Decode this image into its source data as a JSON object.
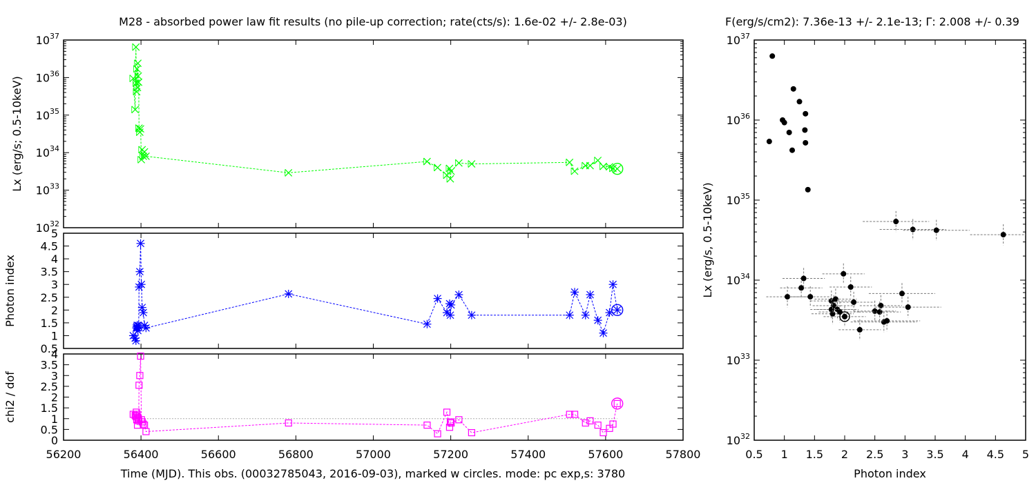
{
  "chart_data": [
    {
      "id": "lx",
      "type": "scatter",
      "title": "M28  - absorbed power law fit results (no pile-up correction; rate(cts/s): 1.6e-02 +/- 2.8e-03)",
      "xlabel": "Time (MJD). This obs. (00032785043, 2016-09-03), marked w circles. mode: pc exp,s: 3780",
      "ylabel": "Lx (erg/s; 0.5-10keV)",
      "xlim": [
        56200,
        57800
      ],
      "xticks": [
        56200,
        56400,
        56600,
        56800,
        57000,
        57200,
        57400,
        57600,
        57800
      ],
      "ylim": [
        1e+32,
        1e+37
      ],
      "ylog": true,
      "yticks": [
        {
          "base": "10",
          "exp": "32"
        },
        {
          "base": "10",
          "exp": "33"
        },
        {
          "base": "10",
          "exp": "34"
        },
        {
          "base": "10",
          "exp": "35"
        },
        {
          "base": "10",
          "exp": "36"
        },
        {
          "base": "10",
          "exp": "37"
        }
      ],
      "color": "#00ff00",
      "x": [
        56380,
        56385,
        56387,
        56388,
        56389,
        56390,
        56391,
        56392,
        56393,
        56394,
        56395,
        56397,
        56399,
        56401,
        56403,
        56406,
        56409,
        56413,
        56781,
        57139,
        57166,
        57190,
        57197,
        57199,
        57201,
        57221,
        57254,
        57507,
        57520,
        57548,
        57560,
        57580,
        57594,
        57610,
        57619,
        57630
      ],
      "y": [
        9.5e+35,
        1.4e+35,
        6.5e+36,
        7.1e+35,
        4.2e+35,
        1.7e+36,
        5.4e+35,
        2.4e+36,
        1.1e+36,
        7.5e+35,
        4.5e+34,
        3.5e+34,
        4.3e+34,
        6.5e+33,
        1.2e+34,
        8e+33,
        1.05e+34,
        8e+33,
        2.9e+33,
        5.8e+33,
        4e+33,
        2.5e+33,
        3.8e+33,
        2e+33,
        3.2e+33,
        5.3e+33,
        5e+33,
        5.5e+33,
        3.2e+33,
        4.5e+33,
        4.5e+33,
        6.2e+33,
        4.3e+33,
        4.2e+33,
        3.8e+33,
        3.7e+33
      ],
      "current_point": {
        "x": 57630,
        "y": 3.7e+33
      }
    },
    {
      "id": "gamma",
      "type": "scatter",
      "ylabel": "Photon index",
      "xlim": [
        56200,
        57800
      ],
      "ylim": [
        0.5,
        5
      ],
      "yticks": [
        "0.5",
        "1",
        "1.5",
        "2",
        "2.5",
        "3",
        "3.5",
        "4",
        "4.5",
        "5"
      ],
      "color": "#0000ff",
      "x": [
        56380,
        56385,
        56387,
        56388,
        56389,
        56390,
        56391,
        56392,
        56393,
        56394,
        56395,
        56397,
        56399,
        56401,
        56403,
        56406,
        56409,
        56413,
        56781,
        57139,
        57166,
        57190,
        57197,
        57199,
        57201,
        57221,
        57254,
        57507,
        57520,
        57548,
        57560,
        57580,
        57594,
        57610,
        57619,
        57630
      ],
      "y": [
        1.0,
        0.9,
        0.8,
        1.3,
        1.35,
        1.4,
        1.3,
        1.2,
        1.4,
        1.35,
        2.9,
        3.5,
        4.6,
        3.0,
        2.1,
        1.9,
        1.4,
        1.3,
        2.63,
        1.45,
        2.45,
        1.9,
        2.25,
        1.8,
        2.2,
        2.6,
        1.8,
        1.8,
        2.7,
        1.8,
        2.6,
        1.6,
        1.1,
        1.9,
        3.0,
        2.0
      ],
      "current_point": {
        "x": 57630,
        "y": 2.0
      }
    },
    {
      "id": "chi2",
      "type": "scatter",
      "ylabel": "chi2 / dof",
      "xlim": [
        56200,
        57800
      ],
      "ylim": [
        0,
        4
      ],
      "yticks": [
        "0",
        "0.5",
        "1",
        "1.5",
        "2",
        "2.5",
        "3",
        "3.5",
        "4"
      ],
      "reference_line": 1,
      "color": "#ff00ff",
      "x": [
        56380,
        56385,
        56387,
        56388,
        56389,
        56390,
        56391,
        56392,
        56393,
        56394,
        56395,
        56397,
        56399,
        56401,
        56403,
        56406,
        56409,
        56413,
        56781,
        57139,
        57166,
        57190,
        57197,
        57199,
        57201,
        57221,
        57254,
        57507,
        57520,
        57548,
        57560,
        57580,
        57594,
        57610,
        57619,
        57630
      ],
      "y": [
        1.2,
        1.15,
        1.1,
        1.3,
        0.95,
        1.2,
        0.7,
        1.05,
        1.0,
        0.9,
        2.55,
        3.0,
        3.9,
        0.95,
        0.85,
        0.75,
        0.7,
        0.4,
        0.8,
        0.7,
        0.3,
        1.3,
        0.6,
        0.85,
        0.8,
        0.95,
        0.35,
        1.2,
        1.2,
        0.8,
        0.9,
        0.7,
        0.35,
        0.55,
        0.75,
        1.7
      ],
      "current_point": {
        "x": 57630,
        "y": 1.7
      }
    },
    {
      "id": "lx_vs_gamma",
      "type": "scatter",
      "title": "F(erg/s/cm2): 7.36e-13 +/- 2.1e-13; Γ: 2.008 +/- 0.39",
      "xlabel": "Photon index",
      "ylabel": "Lx (erg/s, 0.5-10keV)",
      "xlim": [
        0.5,
        5
      ],
      "xticks": [
        "0.5",
        "1",
        "1.5",
        "2",
        "2.5",
        "3",
        "3.5",
        "4",
        "4.5",
        "5"
      ],
      "ylim": [
        1e+32,
        1e+37
      ],
      "ylog": true,
      "yticks": [
        {
          "base": "10",
          "exp": "32"
        },
        {
          "base": "10",
          "exp": "33"
        },
        {
          "base": "10",
          "exp": "34"
        },
        {
          "base": "10",
          "exp": "35"
        },
        {
          "base": "10",
          "exp": "36"
        },
        {
          "base": "10",
          "exp": "37"
        }
      ],
      "color": "#000000",
      "x": [
        0.8,
        0.75,
        1.13,
        0.97,
        1.0,
        1.08,
        1.15,
        1.25,
        1.35,
        1.34,
        1.35,
        1.39,
        2.85,
        3.13,
        3.52,
        4.63,
        1.05,
        1.28,
        1.32,
        1.43,
        1.78,
        1.82,
        1.85,
        1.88,
        1.98,
        2.1,
        2.15,
        2.25,
        2.5,
        2.58,
        2.6,
        2.65,
        2.7,
        2.95,
        3.05,
        1.78,
        1.8,
        1.92,
        2.0
      ],
      "y": [
        6.3e+36,
        5.4e+35,
        4.2e+35,
        1e+36,
        9.3e+35,
        7e+35,
        2.45e+36,
        1.7e+36,
        1.2e+36,
        7.5e+35,
        5.2e+35,
        1.35e+35,
        5.4e+34,
        4.3e+34,
        4.2e+34,
        3.7e+34,
        6.2e+33,
        8e+33,
        1.05e+34,
        6.2e+33,
        5.5e+33,
        4.8e+33,
        5.8e+33,
        4.3e+33,
        1.2e+34,
        8.2e+33,
        5.3e+33,
        2.4e+33,
        4.1e+33,
        4e+33,
        4.8e+33,
        3e+33,
        3.1e+33,
        6.8e+33,
        4.6e+33,
        4.3e+33,
        3.8e+33,
        4e+33,
        3.5e+33
      ],
      "current_point": {
        "x": 2.0,
        "y": 3.5e+33
      }
    }
  ]
}
